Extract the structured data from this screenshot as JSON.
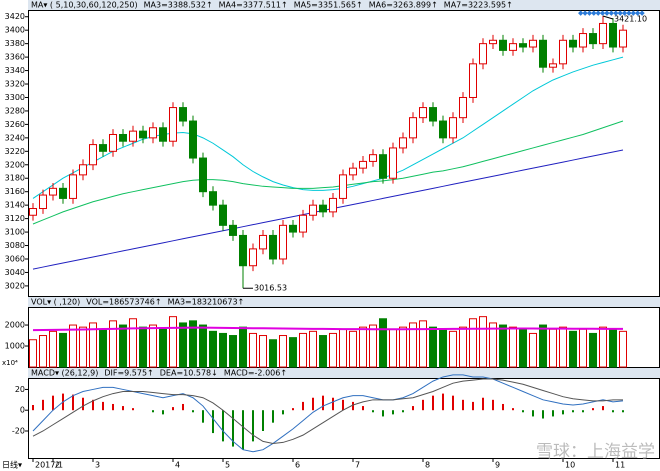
{
  "chart_data": {
    "type": "candlestick",
    "header_items": [
      {
        "text": "MA▾ ( 5,10,30,60,120,250)",
        "color": "#333"
      },
      {
        "text": "MA3=3388.532↑",
        "color": "#e040c0"
      },
      {
        "text": "MA4=3377.511↑",
        "color": "#f08000"
      },
      {
        "text": "MA5=3351.565↑",
        "color": "#00c8d8"
      },
      {
        "text": "MA6=3263.899↑",
        "color": "#10c060"
      },
      {
        "text": "MA7=3223.595↑",
        "color": "#2020c0"
      }
    ],
    "categories": [
      "2017/1",
      null,
      "2",
      null,
      null,
      null,
      "3",
      null,
      null,
      null,
      null,
      null,
      null,
      null,
      "4",
      null,
      null,
      null,
      null,
      "5",
      null,
      null,
      null,
      null,
      null,
      null,
      "6",
      null,
      null,
      null,
      null,
      null,
      "7",
      null,
      null,
      null,
      null,
      null,
      null,
      "8",
      null,
      null,
      null,
      null,
      null,
      null,
      "9",
      null,
      null,
      null,
      null,
      null,
      null,
      "10",
      null,
      null,
      null,
      null,
      "11",
      null
    ],
    "ohlc": [
      [
        3125,
        3143,
        3117,
        3135
      ],
      [
        3135,
        3163,
        3127,
        3155
      ],
      [
        3155,
        3173,
        3147,
        3165
      ],
      [
        3165,
        3173,
        3142,
        3150
      ],
      [
        3150,
        3193,
        3142,
        3185
      ],
      [
        3185,
        3208,
        3177,
        3200
      ],
      [
        3200,
        3238,
        3192,
        3230
      ],
      [
        3230,
        3238,
        3212,
        3220
      ],
      [
        3220,
        3253,
        3212,
        3245
      ],
      [
        3245,
        3253,
        3227,
        3235
      ],
      [
        3235,
        3258,
        3227,
        3250
      ],
      [
        3250,
        3258,
        3232,
        3240
      ],
      [
        3240,
        3263,
        3232,
        3255
      ],
      [
        3255,
        3263,
        3227,
        3235
      ],
      [
        3235,
        3293,
        3227,
        3285
      ],
      [
        3285,
        3293,
        3257,
        3265
      ],
      [
        3265,
        3273,
        3202,
        3210
      ],
      [
        3210,
        3218,
        3152,
        3160
      ],
      [
        3160,
        3168,
        3132,
        3140
      ],
      [
        3140,
        3148,
        3102,
        3110
      ],
      [
        3110,
        3118,
        3087,
        3095
      ],
      [
        3095,
        3103,
        3016.53,
        3050
      ],
      [
        3050,
        3083,
        3042,
        3075
      ],
      [
        3075,
        3103,
        3067,
        3095
      ],
      [
        3095,
        3103,
        3052,
        3060
      ],
      [
        3060,
        3118,
        3052,
        3110
      ],
      [
        3110,
        3118,
        3092,
        3100
      ],
      [
        3100,
        3133,
        3092,
        3125
      ],
      [
        3125,
        3148,
        3117,
        3140
      ],
      [
        3140,
        3148,
        3122,
        3130
      ],
      [
        3130,
        3158,
        3122,
        3150
      ],
      [
        3150,
        3193,
        3142,
        3185
      ],
      [
        3185,
        3203,
        3177,
        3195
      ],
      [
        3195,
        3213,
        3187,
        3205
      ],
      [
        3205,
        3223,
        3197,
        3215
      ],
      [
        3215,
        3223,
        3172,
        3180
      ],
      [
        3180,
        3233,
        3172,
        3225
      ],
      [
        3225,
        3248,
        3217,
        3240
      ],
      [
        3240,
        3278,
        3232,
        3270
      ],
      [
        3270,
        3293,
        3262,
        3285
      ],
      [
        3285,
        3293,
        3257,
        3265
      ],
      [
        3265,
        3273,
        3232,
        3240
      ],
      [
        3240,
        3278,
        3232,
        3270
      ],
      [
        3270,
        3308,
        3262,
        3300
      ],
      [
        3300,
        3358,
        3292,
        3350
      ],
      [
        3350,
        3388,
        3342,
        3380
      ],
      [
        3380,
        3393,
        3372,
        3385
      ],
      [
        3385,
        3393,
        3362,
        3370
      ],
      [
        3370,
        3388,
        3362,
        3380
      ],
      [
        3380,
        3388,
        3367,
        3375
      ],
      [
        3375,
        3393,
        3367,
        3385
      ],
      [
        3385,
        3393,
        3337,
        3345
      ],
      [
        3345,
        3358,
        3337,
        3350
      ],
      [
        3350,
        3393,
        3342,
        3385
      ],
      [
        3385,
        3393,
        3367,
        3375
      ],
      [
        3375,
        3403,
        3367,
        3395
      ],
      [
        3395,
        3403,
        3372,
        3380
      ],
      [
        3380,
        3421.1,
        3372,
        3410
      ],
      [
        3410,
        3418,
        3367,
        3375
      ],
      [
        3375,
        3408,
        3367,
        3400
      ]
    ],
    "low_label": "3016.53",
    "high_label": "3421.10",
    "ylim": [
      3005,
      3430
    ],
    "yticks": [
      3020,
      3040,
      3060,
      3080,
      3100,
      3120,
      3140,
      3160,
      3180,
      3200,
      3220,
      3240,
      3260,
      3280,
      3300,
      3320,
      3340,
      3360,
      3380,
      3400,
      3420
    ],
    "lines": [
      {
        "color": "#00c8d8",
        "values": [
          3150,
          3160,
          3170,
          3180,
          3188,
          3196,
          3204,
          3212,
          3220,
          3226,
          3232,
          3238,
          3242,
          3245,
          3247,
          3248,
          3246,
          3240,
          3232,
          3222,
          3212,
          3200,
          3190,
          3182,
          3175,
          3170,
          3166,
          3163,
          3162,
          3162,
          3163,
          3165,
          3168,
          3172,
          3176,
          3180,
          3186,
          3192,
          3200,
          3208,
          3216,
          3224,
          3232,
          3240,
          3250,
          3260,
          3270,
          3280,
          3290,
          3300,
          3310,
          3318,
          3326,
          3332,
          3338,
          3343,
          3348,
          3352,
          3356,
          3360
        ]
      },
      {
        "color": "#10c060",
        "values": [
          3112,
          3118,
          3124,
          3130,
          3135,
          3140,
          3145,
          3149,
          3153,
          3157,
          3160,
          3163,
          3166,
          3169,
          3172,
          3175,
          3177,
          3178,
          3178,
          3177,
          3175,
          3172,
          3170,
          3168,
          3167,
          3166,
          3165,
          3165,
          3165,
          3166,
          3167,
          3169,
          3171,
          3173,
          3175,
          3176,
          3178,
          3180,
          3183,
          3186,
          3189,
          3191,
          3194,
          3197,
          3201,
          3205,
          3209,
          3213,
          3217,
          3221,
          3225,
          3229,
          3233,
          3237,
          3241,
          3245,
          3250,
          3255,
          3260,
          3265
        ]
      },
      {
        "color": "#2020c0",
        "values": [
          3045,
          3048,
          3051,
          3054,
          3057,
          3060,
          3063,
          3066,
          3069,
          3072,
          3075,
          3078,
          3081,
          3084,
          3087,
          3090,
          3093,
          3096,
          3099,
          3102,
          3105,
          3108,
          3111,
          3114,
          3117,
          3120,
          3123,
          3126,
          3129,
          3132,
          3135,
          3138,
          3141,
          3144,
          3147,
          3150,
          3153,
          3156,
          3159,
          3162,
          3165,
          3168,
          3171,
          3174,
          3177,
          3180,
          3183,
          3186,
          3189,
          3192,
          3195,
          3198,
          3201,
          3204,
          3207,
          3210,
          3213,
          3216,
          3219,
          3222
        ]
      }
    ],
    "up_color": "#e00000",
    "down_color": "#008000",
    "volume": {
      "header_items": [
        {
          "text": "VOL▾ (  ,120)",
          "color": "#333"
        },
        {
          "text": "VOL=186573746↑",
          "color": "#b08000"
        },
        {
          "text": "MA3=183210673↑",
          "color": "#e000e0"
        }
      ],
      "unit": "x10⁴",
      "ylim": [
        0,
        2860
      ],
      "yticks": [
        1000,
        2000
      ],
      "values": [
        1300,
        1500,
        1700,
        1600,
        2000,
        1900,
        2100,
        1800,
        2200,
        2000,
        2300,
        1900,
        2000,
        1800,
        2400,
        2100,
        2200,
        2000,
        1700,
        1600,
        1500,
        1900,
        1600,
        1500,
        1300,
        1500,
        1400,
        1600,
        1700,
        1500,
        1600,
        1800,
        1700,
        1900,
        2000,
        2300,
        1800,
        1900,
        2100,
        2200,
        1900,
        1800,
        1700,
        1900,
        2300,
        2400,
        2100,
        2000,
        1900,
        1800,
        1600,
        2000,
        1800,
        1900,
        1700,
        1800,
        1600,
        1900,
        1800,
        1700
      ],
      "ma_color": "#e000e0",
      "ma_values": [
        1760,
        1765,
        1770,
        1775,
        1780,
        1790,
        1800,
        1810,
        1820,
        1830,
        1840,
        1850,
        1855,
        1860,
        1865,
        1870,
        1875,
        1875,
        1870,
        1865,
        1860,
        1855,
        1850,
        1845,
        1840,
        1835,
        1830,
        1825,
        1820,
        1815,
        1810,
        1808,
        1806,
        1804,
        1802,
        1800,
        1800,
        1802,
        1805,
        1808,
        1810,
        1812,
        1815,
        1818,
        1822,
        1826,
        1830,
        1832,
        1834,
        1835,
        1834,
        1832,
        1830,
        1828,
        1826,
        1824,
        1822,
        1820,
        1820,
        1818
      ]
    },
    "macd": {
      "header_items": [
        {
          "text": "MACD▾ (26,12,9)",
          "color": "#333"
        },
        {
          "text": "DIF=9.575↑",
          "color": "#2060c0"
        },
        {
          "text": "DEA=10.578↓",
          "color": "#b08000"
        },
        {
          "text": "MACD=-2.006↑",
          "color": "#008000"
        }
      ],
      "ylim": [
        -46,
        31
      ],
      "yticks": [
        -20,
        0,
        20
      ],
      "hist": [
        5,
        10,
        14,
        16,
        15,
        12,
        10,
        8,
        6,
        4,
        2,
        0,
        -2,
        -4,
        3,
        6,
        -2,
        -12,
        -22,
        -30,
        -35,
        -38,
        -30,
        -20,
        -12,
        -4,
        2,
        8,
        12,
        14,
        12,
        10,
        8,
        4,
        -2,
        -6,
        -4,
        -2,
        4,
        10,
        14,
        16,
        14,
        10,
        8,
        12,
        10,
        6,
        2,
        -2,
        -6,
        -8,
        -6,
        -4,
        -2,
        -2,
        2,
        4,
        -2,
        -2
      ],
      "dif_color": "#3070c0",
      "dif": [
        -20,
        -10,
        0,
        8,
        14,
        18,
        20,
        22,
        22,
        20,
        18,
        16,
        14,
        12,
        14,
        16,
        12,
        4,
        -8,
        -20,
        -30,
        -38,
        -40,
        -38,
        -32,
        -25,
        -18,
        -10,
        -2,
        4,
        8,
        12,
        14,
        14,
        12,
        10,
        10,
        12,
        16,
        22,
        28,
        32,
        34,
        34,
        32,
        32,
        30,
        26,
        22,
        18,
        14,
        10,
        8,
        6,
        5,
        6,
        8,
        10,
        8,
        9
      ],
      "dea_color": "#555555",
      "dea": [
        -25,
        -20,
        -14,
        -8,
        -2,
        4,
        9,
        13,
        16,
        18,
        18,
        18,
        17,
        16,
        15,
        15,
        14,
        12,
        7,
        0,
        -8,
        -16,
        -24,
        -30,
        -32,
        -31,
        -28,
        -24,
        -18,
        -12,
        -6,
        0,
        5,
        8,
        10,
        10,
        10,
        11,
        12,
        15,
        18,
        22,
        26,
        28,
        29,
        30,
        30,
        29,
        27,
        25,
        22,
        19,
        16,
        13,
        11,
        10,
        9,
        9,
        10,
        10
      ]
    },
    "period_label": "日线▾",
    "watermark": "雪球：上海益学"
  }
}
